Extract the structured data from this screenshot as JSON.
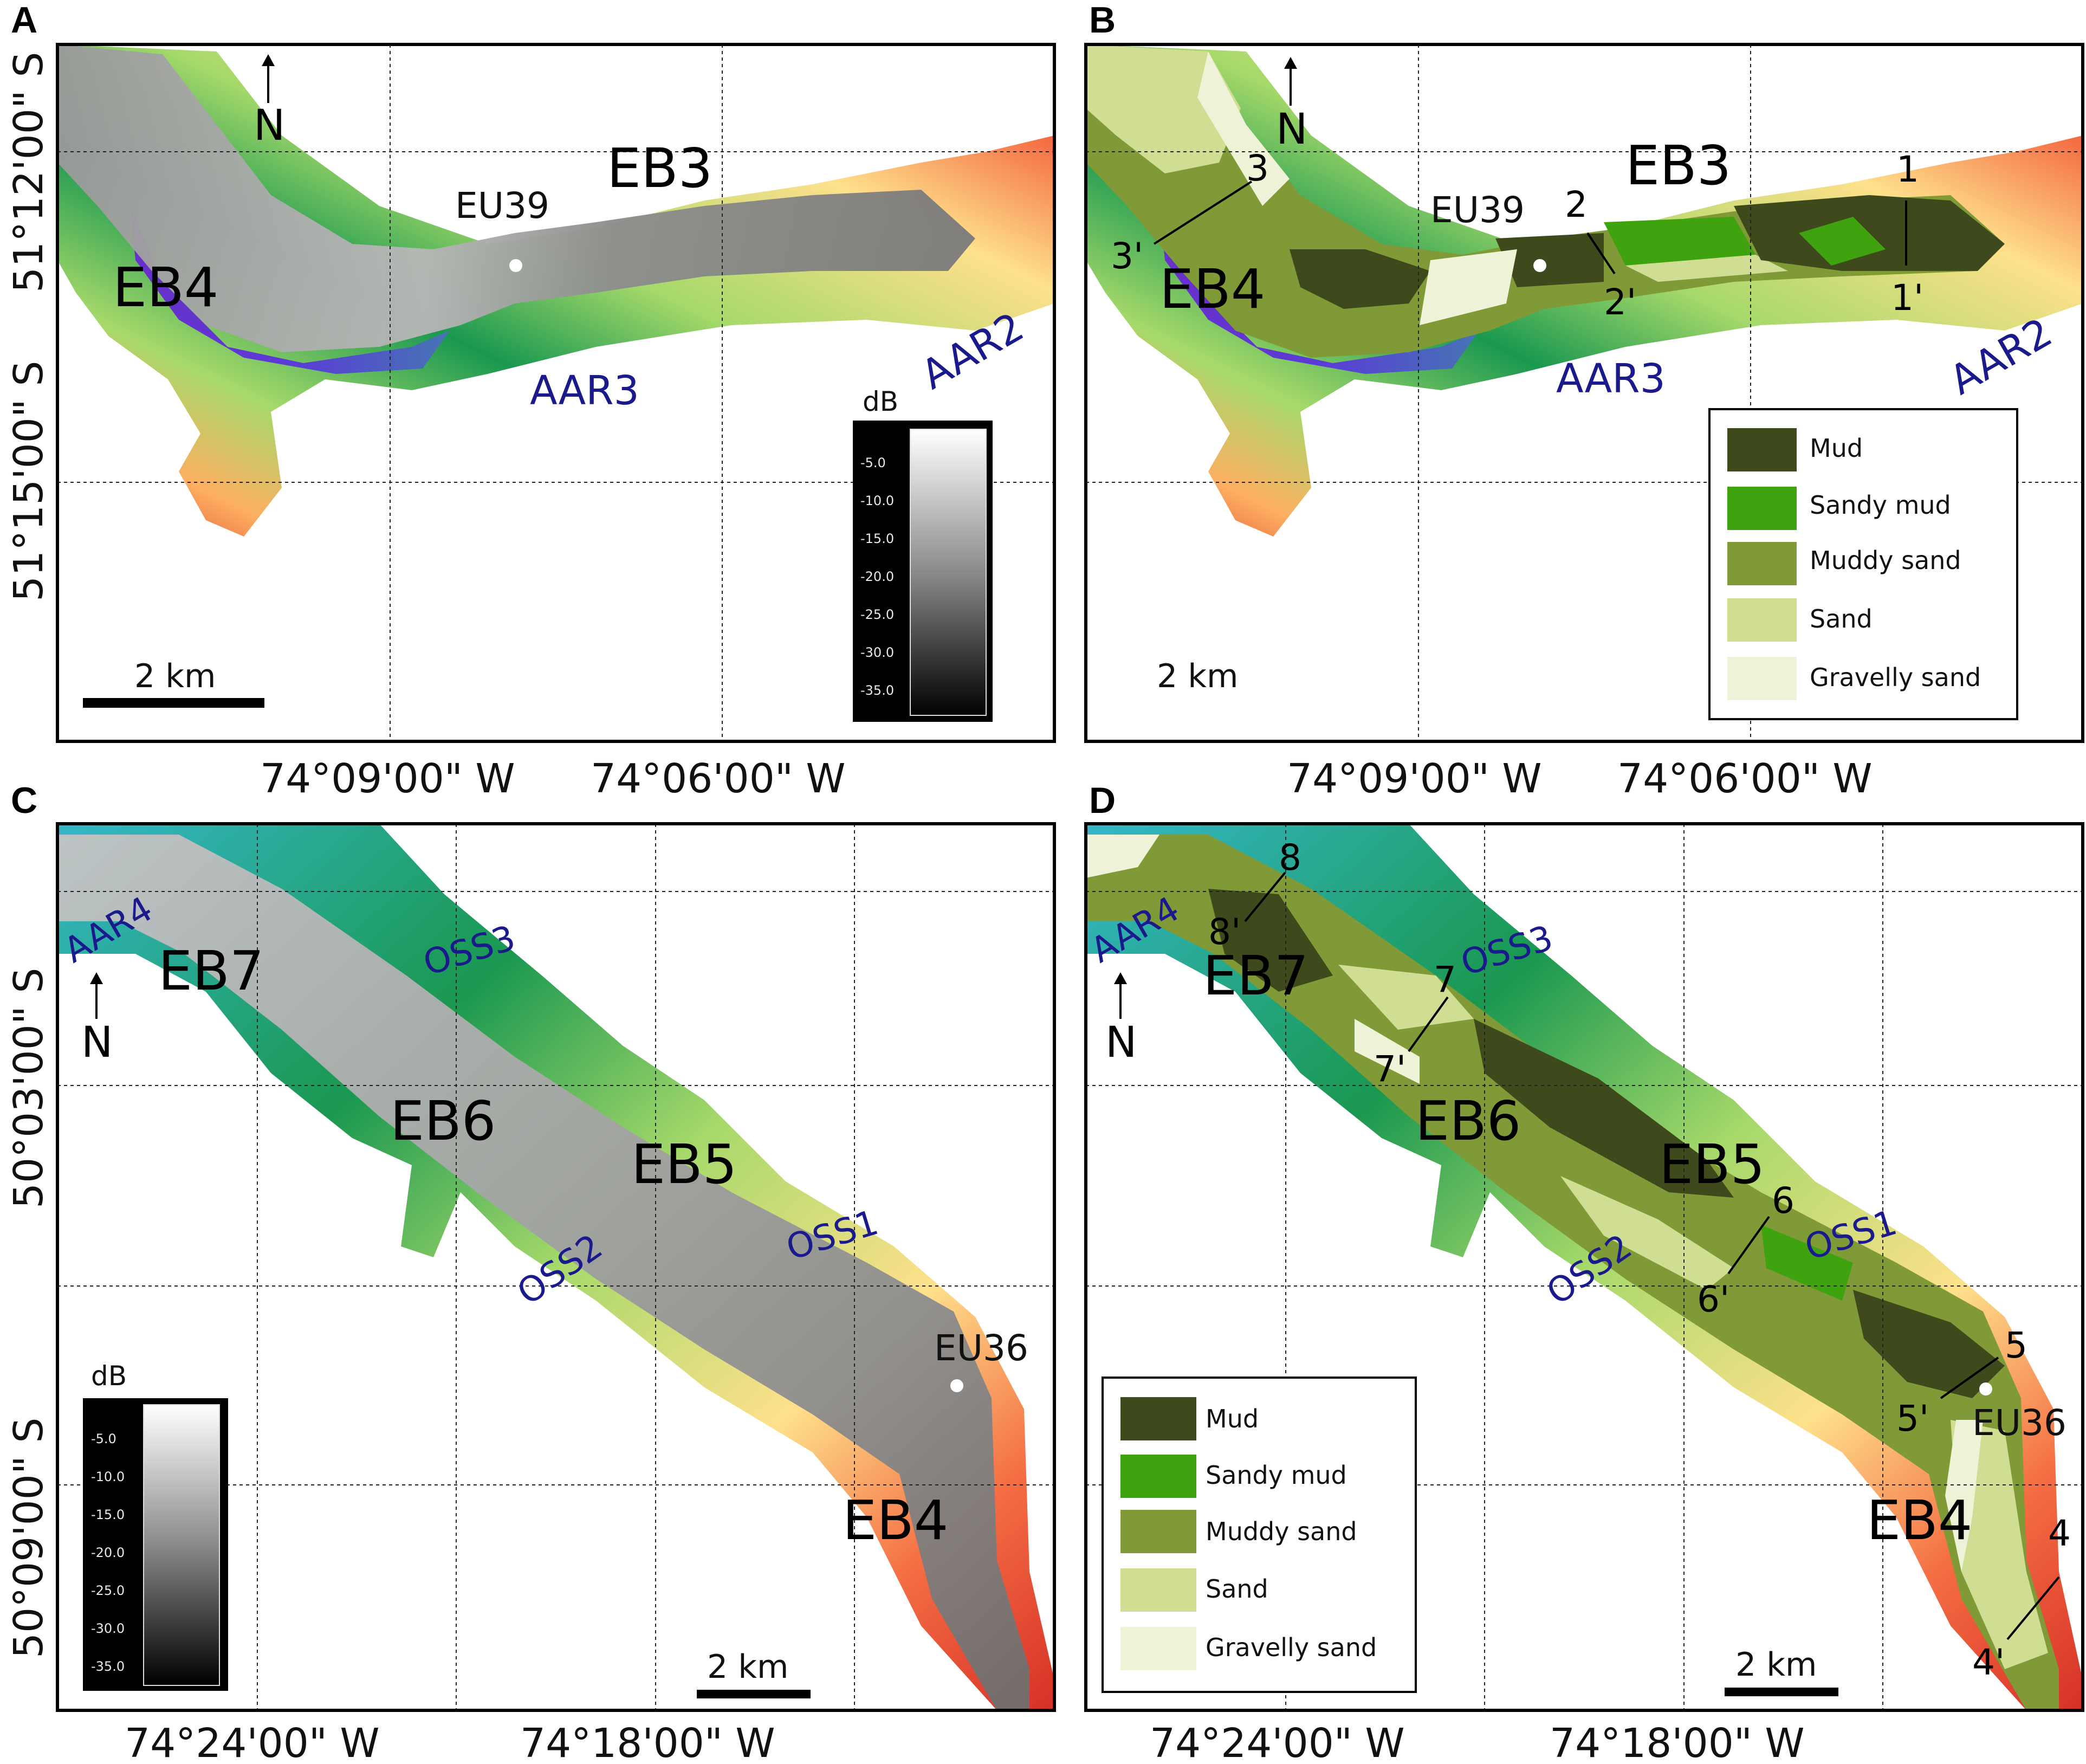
{
  "panels": {
    "a": {
      "letter": "A",
      "lat_labels": [
        "51°12'00\" S",
        "51°15'00\" S"
      ],
      "lon_labels": [
        "74°09'00\" W",
        "74°06'00\" W"
      ],
      "basins": [
        "EB3",
        "EB4"
      ],
      "station": "EU39",
      "fjords": [
        "AAR3",
        "AAR2"
      ],
      "north": "N",
      "scale": "2 km",
      "colorbar": {
        "title": "dB",
        "ticks": [
          "-5.0",
          "-10.0",
          "-15.0",
          "-20.0",
          "-25.0",
          "-30.0",
          "-35.0"
        ]
      }
    },
    "b": {
      "letter": "B",
      "basins": [
        "EB3",
        "EB4"
      ],
      "station": "EU39",
      "fjords": [
        "AAR3",
        "AAR2"
      ],
      "north": "N",
      "scale": "2 km",
      "lon_labels": [
        "74°09'00\" W",
        "74°06'00\" W"
      ],
      "transects": [
        "1",
        "1'",
        "2",
        "2'",
        "3",
        "3'"
      ],
      "legend": [
        {
          "label": "Mud",
          "color": "#3f4a1c"
        },
        {
          "label": "Sandy mud",
          "color": "#3ea30f"
        },
        {
          "label": "Muddy sand",
          "color": "#7f9a36"
        },
        {
          "label": "Sand",
          "color": "#cfde93"
        },
        {
          "label": "Gravelly sand",
          "color": "#eef3d8"
        }
      ]
    },
    "c": {
      "letter": "C",
      "lat_labels": [
        "50°03'00\" S",
        "50°09'00\" S"
      ],
      "lon_labels": [
        "74°24'00\" W",
        "74°18'00\" W"
      ],
      "basins": [
        "EB7",
        "EB6",
        "EB5",
        "EB4"
      ],
      "station": "EU36",
      "fjords": [
        "AAR4",
        "OSS3",
        "OSS2",
        "OSS1"
      ],
      "north": "N",
      "scale": "2 km",
      "colorbar": {
        "title": "dB",
        "ticks": [
          "-5.0",
          "-10.0",
          "-15.0",
          "-20.0",
          "-25.0",
          "-30.0",
          "-35.0"
        ]
      }
    },
    "d": {
      "letter": "D",
      "lon_labels": [
        "74°24'00\" W",
        "74°18'00\" W"
      ],
      "basins": [
        "EB7",
        "EB6",
        "EB5",
        "EB4"
      ],
      "station": "EU36",
      "fjords": [
        "AAR4",
        "OSS3",
        "OSS2",
        "OSS1"
      ],
      "north": "N",
      "scale": "2 km",
      "transects": [
        "4",
        "4'",
        "5",
        "5'",
        "6",
        "6'",
        "7",
        "7'",
        "8",
        "8'"
      ],
      "legend": [
        {
          "label": "Mud",
          "color": "#3f4a1c"
        },
        {
          "label": "Sandy mud",
          "color": "#3ea30f"
        },
        {
          "label": "Muddy sand",
          "color": "#7f9a36"
        },
        {
          "label": "Sand",
          "color": "#cfde93"
        },
        {
          "label": "Gravelly sand",
          "color": "#eef3d8"
        }
      ]
    }
  },
  "colors": {
    "bathy": [
      "#d73027",
      "#f46d43",
      "#fdae61",
      "#fee08b",
      "#a6d96a",
      "#1a9850",
      "#35b7c9",
      "#4575b4",
      "#6a2fc9"
    ]
  }
}
